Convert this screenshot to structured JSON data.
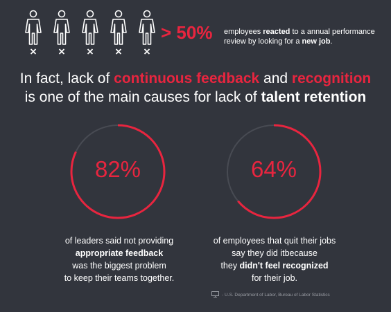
{
  "stat": {
    "people_count": 5,
    "icon": "person-x-icon",
    "percent": "> 50%",
    "note_before": "employees ",
    "note_bold1": "reacted",
    "note_middle": " to a annual performance review by looking for a ",
    "note_bold2": "new job",
    "note_end": "."
  },
  "headline": {
    "line1_prefix": "In fact, lack of ",
    "line1_red1": "continuous feedback",
    "line1_and": " and ",
    "line1_red2": "recognition",
    "line2_prefix": "is one of the main causes for lack of ",
    "line2_bold": "talent retention"
  },
  "rings": [
    {
      "value_label": "82%",
      "fraction": 0.82,
      "desc": {
        "line1": "of leaders said not providing",
        "line2_bold": "appropriate feedback",
        "line3": "was the biggest problem",
        "line4": "to keep their teams together."
      }
    },
    {
      "value_label": "64%",
      "fraction": 0.64,
      "desc": {
        "line1": "of employees that quit their jobs",
        "line2": "say they did itbecause",
        "line3_pre": "they ",
        "line3_bold": "didn't feel recognized",
        "line4": "for their job."
      }
    }
  ],
  "source": {
    "icon": "monitor-icon",
    "text": "- U.S. Department of Labor, Bureau of Labor Statistics"
  },
  "colors": {
    "background": "#32353d",
    "accent": "#e8253f",
    "track": "#484b53",
    "text": "#ffffff"
  }
}
